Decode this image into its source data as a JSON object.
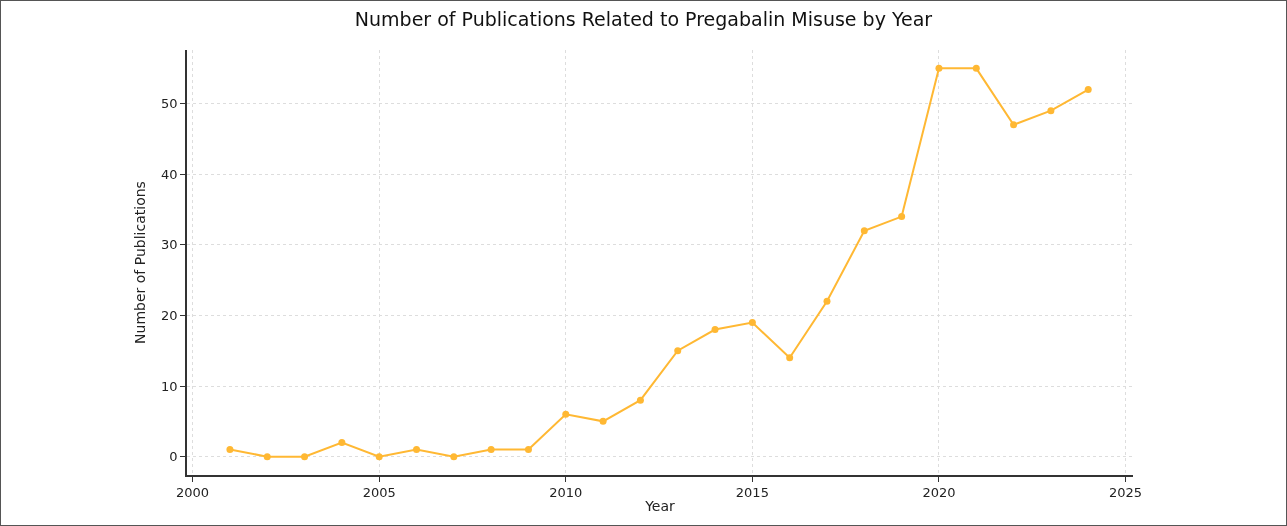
{
  "chart_data": {
    "type": "line",
    "title": "Number of Publications Related to Pregabalin Misuse by Year",
    "xlabel": "Year",
    "ylabel": "Number of Publications",
    "x": [
      2001,
      2002,
      2003,
      2004,
      2005,
      2006,
      2007,
      2008,
      2009,
      2010,
      2011,
      2012,
      2013,
      2014,
      2015,
      2016,
      2017,
      2018,
      2019,
      2020,
      2021,
      2022,
      2023,
      2024
    ],
    "series": [
      {
        "color": "#ffb833",
        "values": [
          1,
          0,
          0,
          2,
          0,
          1,
          0,
          1,
          1,
          6,
          5,
          8,
          15,
          18,
          19,
          14,
          22,
          32,
          34,
          55,
          55,
          47,
          49,
          52
        ]
      }
    ],
    "xlim": [
      1999.85,
      2025.2
    ],
    "xticks": [
      2000,
      2005,
      2010,
      2015,
      2020,
      2025
    ],
    "ylim": [
      -2.6,
      57.6
    ],
    "yticks": [
      0,
      10,
      20,
      30,
      40,
      50
    ],
    "grid": true,
    "marker": "circle",
    "line_style": "solid"
  }
}
